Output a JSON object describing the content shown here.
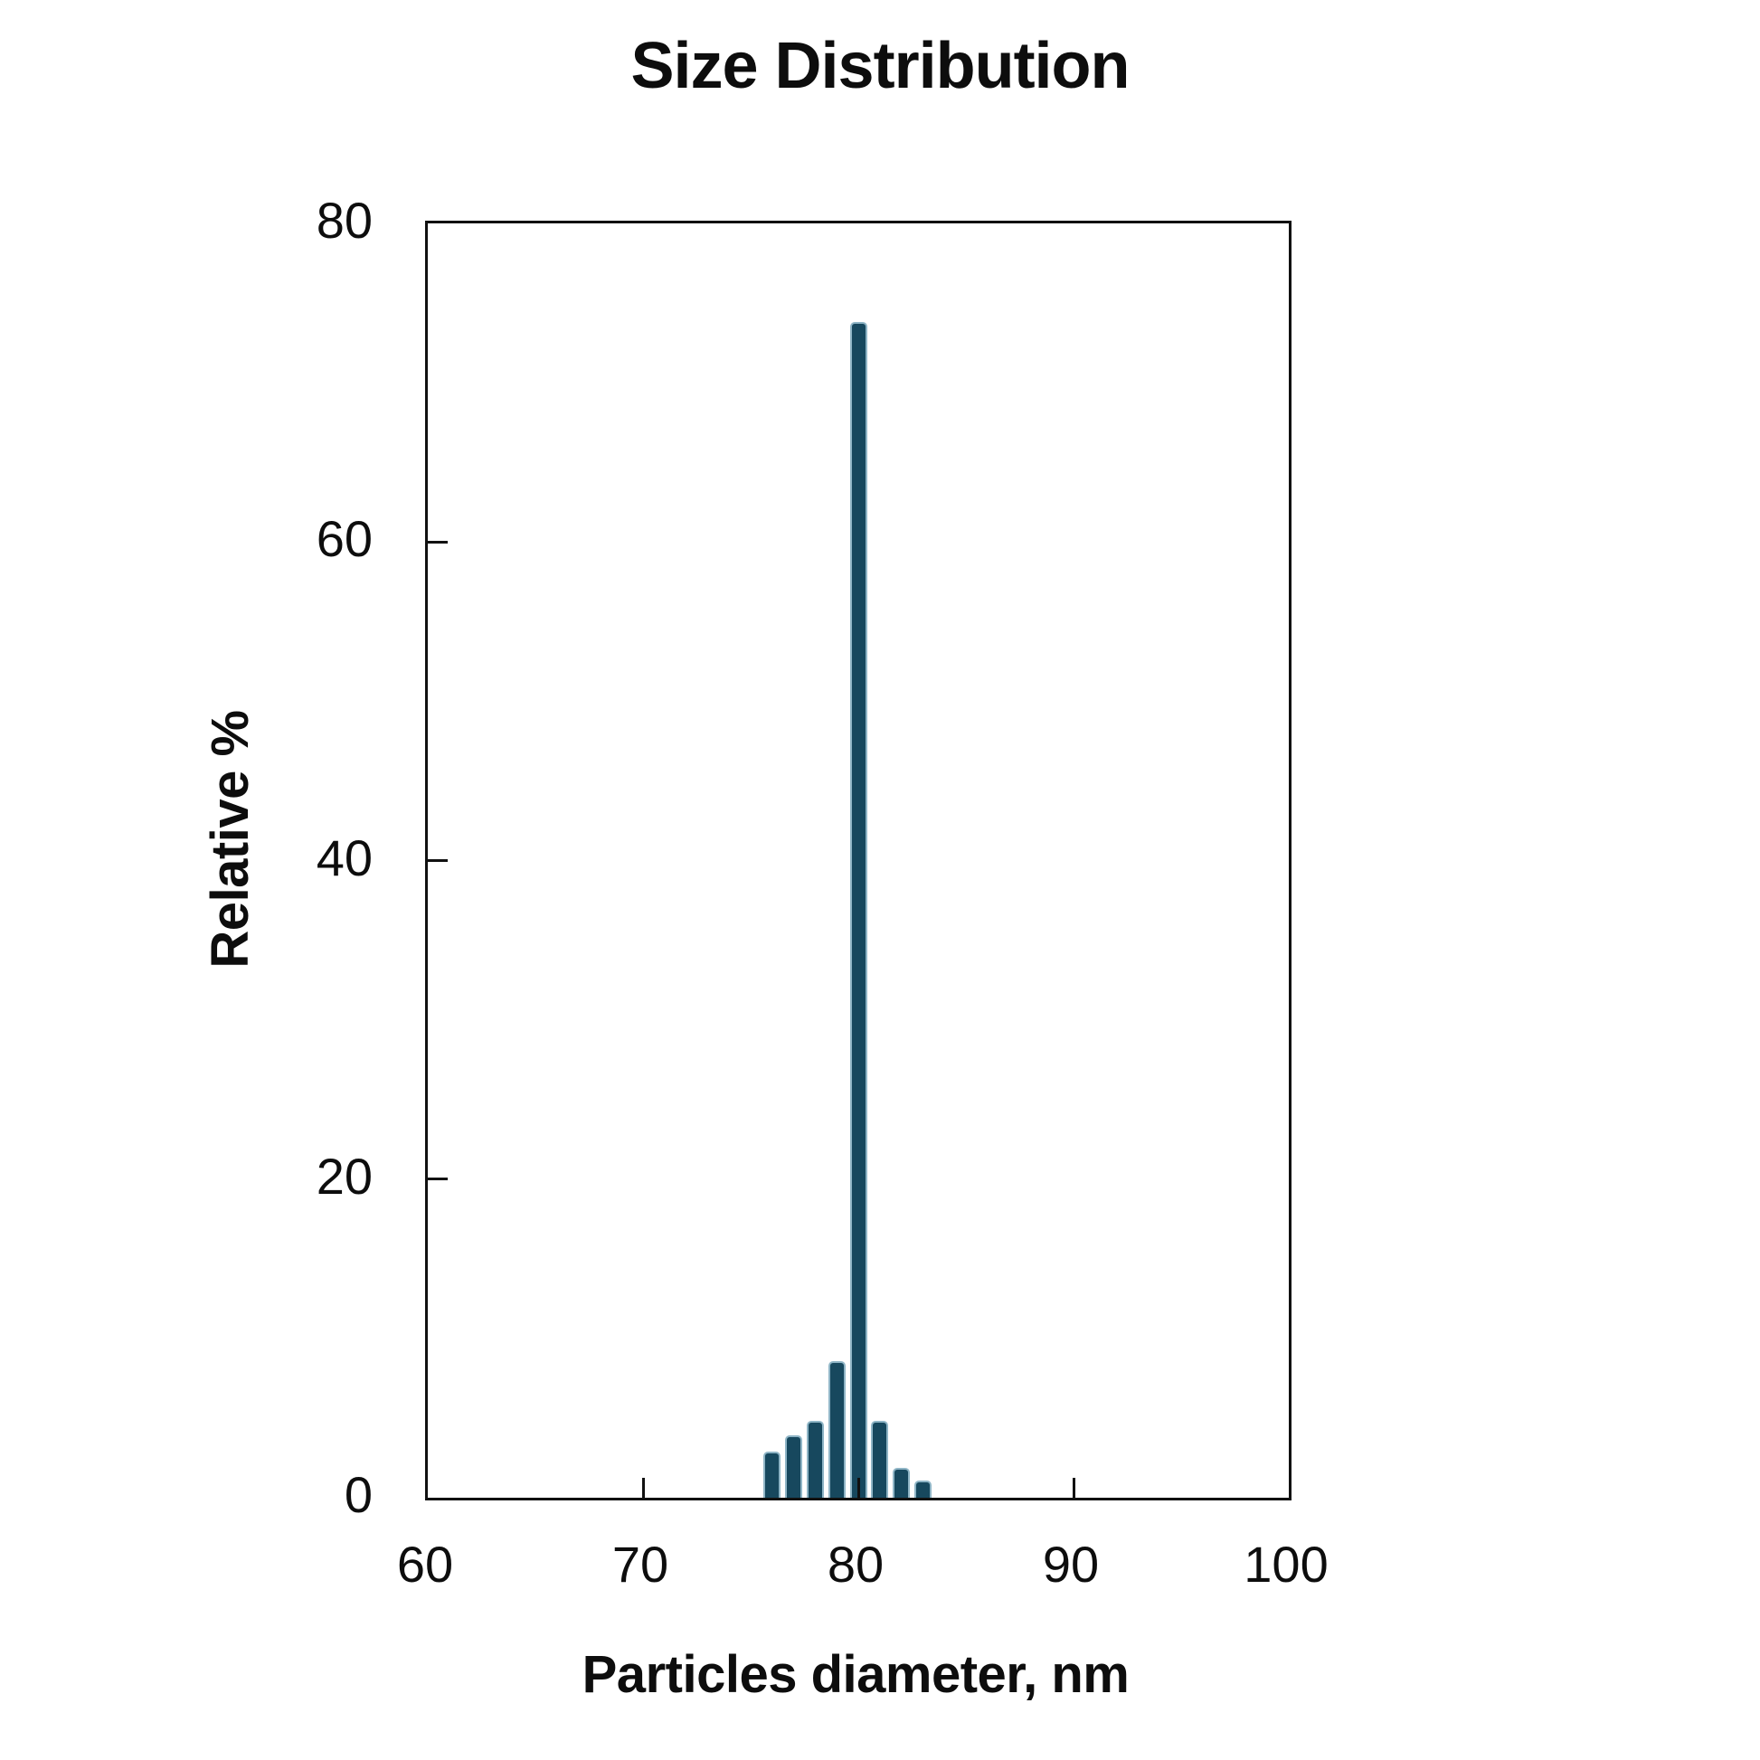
{
  "chart_data": {
    "type": "bar",
    "title": "Size Distribution",
    "xlabel": "Particles diameter, nm",
    "ylabel": "Relative %",
    "categories": [
      76,
      77,
      78,
      79,
      80,
      81,
      82,
      83
    ],
    "values": [
      2.9,
      3.9,
      4.8,
      8.6,
      73.8,
      4.8,
      1.9,
      1.1
    ],
    "xlim": [
      60,
      100
    ],
    "ylim": [
      0,
      80
    ],
    "x_ticks": [
      60,
      70,
      80,
      90,
      100
    ],
    "y_ticks": [
      0,
      20,
      40,
      60,
      80
    ],
    "grid": false,
    "legend": false,
    "bar_color": "#17485E",
    "bar_border_color": "#8FB5C6",
    "axis_color": "#111111",
    "text_color": "#0d0d0d"
  }
}
